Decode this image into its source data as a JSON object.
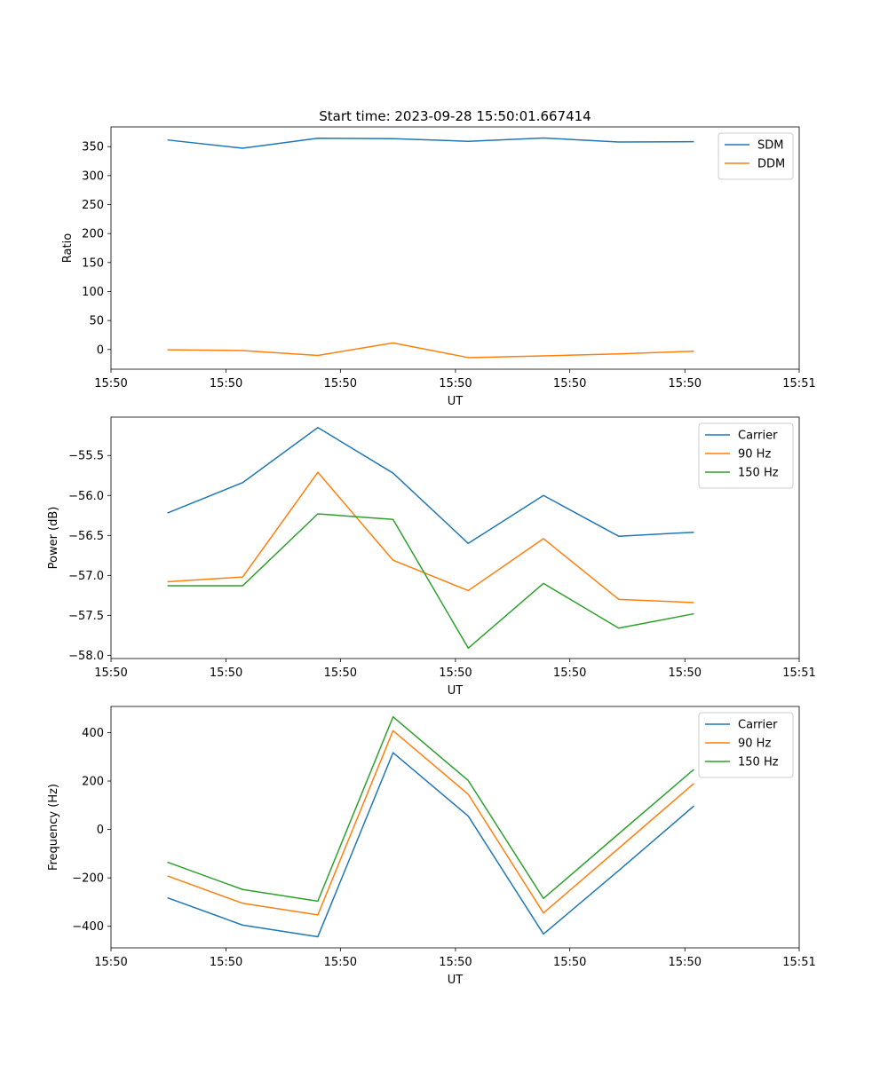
{
  "chart_data": [
    {
      "type": "line",
      "title": "Start time: 2023-09-28 15:50:01.667414",
      "xlabel": "UT",
      "ylabel": "Ratio",
      "x": [
        0,
        1,
        2,
        3,
        4,
        5,
        6,
        7
      ],
      "xlim": [
        -0.75,
        8.4
      ],
      "xtick_positions": [
        -0.75,
        0.78,
        2.3,
        3.83,
        5.35,
        6.88,
        8.4
      ],
      "xtick_labels": [
        "15:50",
        "15:50",
        "15:50",
        "15:50",
        "15:50",
        "15:50",
        "15:51"
      ],
      "ylim": [
        -34,
        384
      ],
      "yticks": [
        0,
        50,
        100,
        150,
        200,
        250,
        300,
        350
      ],
      "legend": "top-right",
      "grid": false,
      "series": [
        {
          "name": "SDM",
          "color": "#1f77b4",
          "values": [
            361.5,
            347.3,
            364.5,
            363.8,
            359.2,
            364.8,
            358.0,
            358.5
          ]
        },
        {
          "name": "DDM",
          "color": "#ff7f0e",
          "values": [
            -0.5,
            -1.8,
            -10.3,
            11.3,
            -14.0,
            -11.0,
            -7.5,
            -3.0
          ]
        }
      ]
    },
    {
      "type": "line",
      "title": "",
      "xlabel": "UT",
      "ylabel": "Power (dB)",
      "x": [
        0,
        1,
        2,
        3,
        4,
        5,
        6,
        7
      ],
      "xlim": [
        -0.75,
        8.4
      ],
      "xtick_positions": [
        -0.75,
        0.78,
        2.3,
        3.83,
        5.35,
        6.88,
        8.4
      ],
      "xtick_labels": [
        "15:50",
        "15:50",
        "15:50",
        "15:50",
        "15:50",
        "15:50",
        "15:51"
      ],
      "ylim": [
        -58.04,
        -55.02
      ],
      "yticks": [
        -58.0,
        -57.5,
        -57.0,
        -56.5,
        -56.0,
        -55.5
      ],
      "ytick_labels": [
        "−58.0",
        "−57.5",
        "−57.0",
        "−56.5",
        "−56.0",
        "−55.5"
      ],
      "legend": "top-right",
      "grid": false,
      "series": [
        {
          "name": "Carrier",
          "color": "#1f77b4",
          "values": [
            -56.22,
            -55.84,
            -55.15,
            -55.72,
            -56.6,
            -56.0,
            -56.51,
            -56.46
          ]
        },
        {
          "name": "90 Hz",
          "color": "#ff7f0e",
          "values": [
            -57.08,
            -57.02,
            -55.71,
            -56.81,
            -57.19,
            -56.54,
            -57.3,
            -57.34
          ]
        },
        {
          "name": "150 Hz",
          "color": "#2ca02c",
          "values": [
            -57.13,
            -57.13,
            -56.23,
            -56.3,
            -57.91,
            -57.1,
            -57.66,
            -57.48
          ]
        }
      ]
    },
    {
      "type": "line",
      "title": "",
      "xlabel": "UT",
      "ylabel": "Frequency (Hz)",
      "x": [
        0,
        1,
        2,
        3,
        4,
        5,
        6,
        7
      ],
      "xlim": [
        -0.75,
        8.4
      ],
      "xtick_positions": [
        -0.75,
        0.78,
        2.3,
        3.83,
        5.35,
        6.88,
        8.4
      ],
      "xtick_labels": [
        "15:50",
        "15:50",
        "15:50",
        "15:50",
        "15:50",
        "15:50",
        "15:51"
      ],
      "ylim": [
        -489,
        508
      ],
      "yticks": [
        -400,
        -200,
        0,
        200,
        400
      ],
      "ytick_labels": [
        "−400",
        "−200",
        "0",
        "200",
        "400"
      ],
      "legend": "top-right",
      "grid": false,
      "series": [
        {
          "name": "Carrier",
          "color": "#1f77b4",
          "values": [
            -282,
            -395,
            -443,
            317,
            55,
            -432,
            -170,
            97
          ]
        },
        {
          "name": "90 Hz",
          "color": "#ff7f0e",
          "values": [
            -192,
            -305,
            -353,
            408,
            145,
            -345,
            -78,
            190
          ]
        },
        {
          "name": "150 Hz",
          "color": "#2ca02c",
          "values": [
            -135,
            -248,
            -296,
            465,
            202,
            -285,
            -18,
            248
          ]
        }
      ]
    }
  ]
}
